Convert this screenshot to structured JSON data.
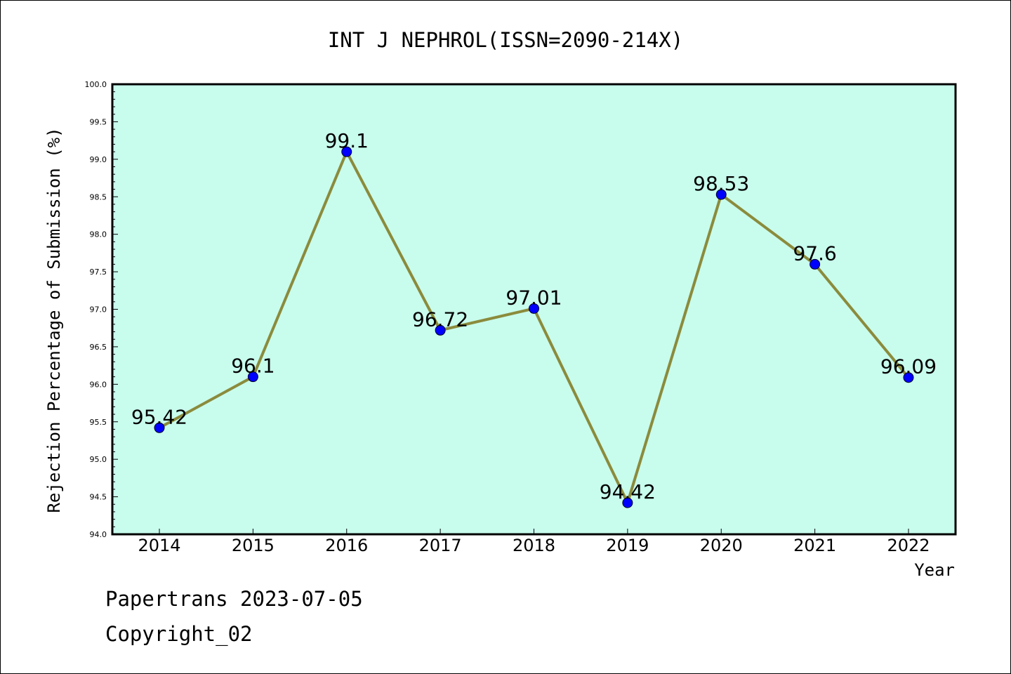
{
  "chart_data": {
    "type": "line",
    "title": "INT J NEPHROL(ISSN=2090-214X)",
    "xlabel": "Year",
    "ylabel": "Rejection Percentage of Submission (%)",
    "ylim": [
      94.0,
      100.0
    ],
    "y_ticks": [
      "94.0",
      "94.5",
      "95.0",
      "95.5",
      "96.0",
      "96.5",
      "97.0",
      "97.5",
      "98.0",
      "98.5",
      "99.0",
      "99.5",
      "100.0"
    ],
    "categories": [
      "2014",
      "2015",
      "2016",
      "2017",
      "2018",
      "2019",
      "2020",
      "2021",
      "2022"
    ],
    "values": [
      95.42,
      96.1,
      99.1,
      96.72,
      97.01,
      94.42,
      98.53,
      97.6,
      96.09
    ],
    "data_labels": [
      "95.42",
      "96.1",
      "99.1",
      "96.72",
      "97.01",
      "94.42",
      "98.53",
      "97.6",
      "96.09"
    ],
    "grid": false,
    "colors": {
      "plot_background": "#c8fced",
      "line": "#8b8b3c",
      "marker": "#0000ff"
    }
  },
  "footer": {
    "line1": "Papertrans 2023-07-05",
    "line2": "Copyright_02"
  }
}
